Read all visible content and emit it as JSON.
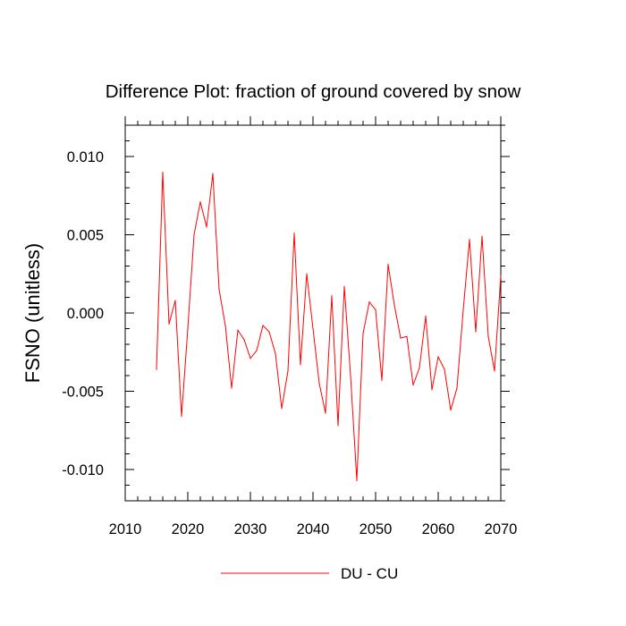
{
  "chart_data": {
    "type": "line",
    "title": "Difference Plot: fraction of ground covered by snow",
    "xlabel": "",
    "ylabel": "FSNO  (unitless)",
    "xlim": [
      2010,
      2070
    ],
    "ylim": [
      -0.012,
      0.012
    ],
    "x_ticks": [
      2010,
      2020,
      2030,
      2040,
      2050,
      2060,
      2070
    ],
    "x_tick_labels": [
      "2010",
      "2020",
      "2030",
      "2040",
      "2050",
      "2060",
      "2070"
    ],
    "y_ticks": [
      0.01,
      0.005,
      0.0,
      -0.005,
      -0.01
    ],
    "y_tick_labels": [
      "0.010",
      "0.005",
      "0.000",
      "-0.005",
      "-0.010"
    ],
    "grid": false,
    "legend_position": "bottom-center",
    "series": [
      {
        "name": "DU - CU",
        "color": "#ff0000",
        "x": [
          2015,
          2016,
          2017,
          2018,
          2019,
          2020,
          2021,
          2022,
          2023,
          2024,
          2025,
          2026,
          2027,
          2028,
          2029,
          2030,
          2031,
          2032,
          2033,
          2034,
          2035,
          2036,
          2037,
          2038,
          2039,
          2040,
          2041,
          2042,
          2043,
          2044,
          2045,
          2046,
          2047,
          2048,
          2049,
          2050,
          2051,
          2052,
          2053,
          2054,
          2055,
          2056,
          2057,
          2058,
          2059,
          2060,
          2061,
          2062,
          2063,
          2064,
          2065,
          2066,
          2067,
          2068,
          2069,
          2070
        ],
        "values": [
          -0.0036,
          0.009,
          -0.0007,
          0.0008,
          -0.0066,
          -0.001,
          0.005,
          0.0071,
          0.0055,
          0.0089,
          0.0015,
          -0.0008,
          -0.0048,
          -0.0011,
          -0.0017,
          -0.0029,
          -0.0024,
          -0.0008,
          -0.0012,
          -0.0026,
          -0.0061,
          -0.0037,
          0.0051,
          -0.0033,
          0.0025,
          -0.001,
          -0.0045,
          -0.0064,
          0.0011,
          -0.0072,
          0.0017,
          -0.004,
          -0.0107,
          -0.0013,
          0.0007,
          0.0002,
          -0.0043,
          0.0031,
          0.0005,
          -0.0016,
          -0.0015,
          -0.0046,
          -0.0035,
          -0.0002,
          -0.0049,
          -0.0028,
          -0.0036,
          -0.0062,
          -0.0048,
          0.0002,
          0.0047,
          -0.0012,
          0.0049,
          -0.0015,
          -0.0037,
          0.0024
        ]
      }
    ]
  }
}
